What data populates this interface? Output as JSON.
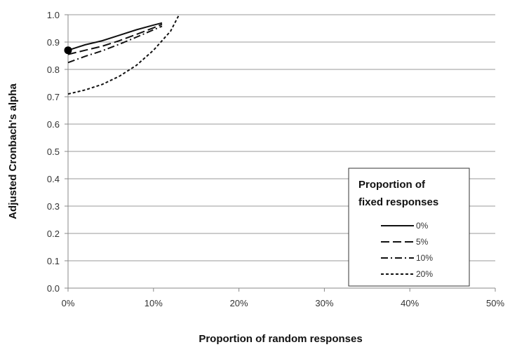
{
  "chart_data": {
    "type": "line",
    "xlabel": "Proportion of random responses",
    "ylabel": "Adjusted Cronbach's  alpha",
    "xlim": [
      0,
      50
    ],
    "ylim": [
      0,
      1.0
    ],
    "x_tick_labels": [
      "0%",
      "10%",
      "20%",
      "30%",
      "40%",
      "50%"
    ],
    "y_tick_labels": [
      "0.0",
      "0.1",
      "0.2",
      "0.3",
      "0.4",
      "0.5",
      "0.6",
      "0.7",
      "0.8",
      "0.9",
      "1.0"
    ],
    "grid": "horizontal",
    "legend": {
      "title_line1": "Proportion of",
      "title_line2": "fixed responses",
      "placement": "lower-right"
    },
    "series": [
      {
        "name": "0%",
        "style": "solid",
        "points": [
          [
            0,
            0.87
          ],
          [
            2,
            0.89
          ],
          [
            4,
            0.905
          ],
          [
            6,
            0.925
          ],
          [
            8,
            0.945
          ],
          [
            10,
            0.962
          ],
          [
            11,
            0.97
          ]
        ]
      },
      {
        "name": "5%",
        "style": "dashed",
        "points": [
          [
            0,
            0.855
          ],
          [
            2,
            0.87
          ],
          [
            4,
            0.885
          ],
          [
            6,
            0.905
          ],
          [
            8,
            0.928
          ],
          [
            10,
            0.952
          ],
          [
            11,
            0.965
          ]
        ]
      },
      {
        "name": "10%",
        "style": "dashdot",
        "points": [
          [
            0,
            0.825
          ],
          [
            2,
            0.848
          ],
          [
            4,
            0.868
          ],
          [
            6,
            0.892
          ],
          [
            8,
            0.918
          ],
          [
            10,
            0.945
          ],
          [
            11,
            0.958
          ]
        ]
      },
      {
        "name": "20%",
        "style": "dotted",
        "points": [
          [
            0,
            0.71
          ],
          [
            2,
            0.725
          ],
          [
            4,
            0.745
          ],
          [
            6,
            0.775
          ],
          [
            8,
            0.815
          ],
          [
            10,
            0.87
          ],
          [
            12,
            0.94
          ],
          [
            13,
            1.0
          ]
        ]
      }
    ],
    "markers": [
      {
        "x": 0,
        "y": 0.87
      }
    ]
  }
}
